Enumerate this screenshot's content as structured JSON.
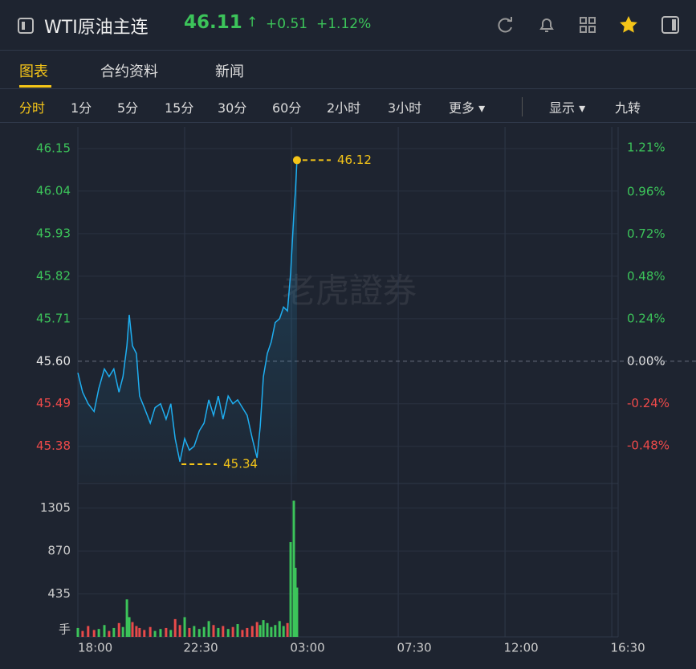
{
  "header": {
    "symbol": "WTI原油主连",
    "price": "46.11",
    "change": "+0.51",
    "change_pct": "+1.12%"
  },
  "tabs": [
    "图表",
    "合约资料",
    "新闻"
  ],
  "periods": [
    "分时",
    "1分",
    "5分",
    "15分",
    "30分",
    "60分",
    "2小时",
    "3小时"
  ],
  "more": "更多",
  "display": "显示",
  "nine": "九转",
  "watermark": "老虎證券",
  "chart_data": [
    {
      "type": "line",
      "baseline": 45.6,
      "up_color": "#3cc45a",
      "down_color": "#f04a4a",
      "flat_color": "#e6e6e6",
      "marker_color": "#f5c518",
      "x": [
        0,
        12,
        26,
        41,
        53,
        67,
        79,
        91,
        104,
        114,
        124,
        130,
        138,
        148,
        156,
        168,
        183,
        195,
        209,
        223,
        235,
        246,
        258,
        270,
        282,
        294,
        307,
        319,
        331,
        343,
        355,
        367,
        380,
        392,
        404,
        416,
        428,
        441,
        453,
        461,
        469,
        479,
        489,
        499,
        510,
        520,
        530,
        538,
        546,
        550,
        554
      ],
      "series": [
        {
          "color": "#1eaef0",
          "values": [
            45.57,
            45.52,
            45.49,
            45.47,
            45.53,
            45.58,
            45.56,
            45.58,
            45.52,
            45.56,
            45.64,
            45.72,
            45.64,
            45.62,
            45.51,
            45.48,
            45.44,
            45.48,
            45.49,
            45.45,
            45.49,
            45.4,
            45.34,
            45.4,
            45.37,
            45.38,
            45.42,
            45.44,
            45.5,
            45.46,
            45.51,
            45.45,
            45.51,
            45.49,
            45.5,
            45.48,
            45.46,
            45.4,
            45.35,
            45.43,
            45.56,
            45.62,
            45.65,
            45.7,
            45.71,
            45.74,
            45.73,
            45.83,
            45.98,
            46.04,
            46.12
          ]
        }
      ],
      "xlim": [
        0,
        1366
      ],
      "ylim": [
        45.288,
        46.206
      ],
      "yticks": [
        {
          "value": 46.15,
          "label": "46.15"
        },
        46.04,
        45.93,
        45.82,
        45.71,
        {
          "value": 45.6,
          "label": "45.60"
        },
        45.49,
        45.38
      ],
      "y2lim": [
        -0.684,
        1.329
      ],
      "y2ticks": [
        {
          "value": 1.21,
          "label": "1.21%"
        },
        {
          "value": 0.96,
          "label": "0.96%"
        },
        {
          "value": 0.72,
          "label": "0.72%"
        },
        {
          "value": 0.48,
          "label": "0.48%"
        },
        {
          "value": 0.24,
          "label": "0.24%"
        },
        {
          "value": 0,
          "label": "0.00%"
        },
        {
          "value": -0.24,
          "label": "-0.24%"
        },
        {
          "value": -0.48,
          "label": "-0.48%"
        }
      ],
      "grid": true
    },
    {
      "type": "bar",
      "unit_label": "手",
      "up_color": "#3cc45a",
      "down_color": "#e84a4a",
      "x": [
        0,
        12,
        26,
        41,
        53,
        67,
        79,
        91,
        104,
        114,
        124,
        130,
        138,
        148,
        156,
        168,
        183,
        195,
        209,
        223,
        235,
        246,
        258,
        270,
        282,
        294,
        307,
        319,
        331,
        343,
        355,
        367,
        380,
        392,
        404,
        416,
        428,
        441,
        453,
        461,
        469,
        479,
        489,
        499,
        510,
        520,
        530,
        538,
        546,
        550,
        554
      ],
      "values": [
        90,
        60,
        110,
        70,
        80,
        120,
        60,
        90,
        140,
        100,
        380,
        200,
        150,
        110,
        90,
        70,
        100,
        60,
        80,
        90,
        70,
        180,
        120,
        200,
        90,
        110,
        80,
        100,
        160,
        120,
        90,
        110,
        80,
        100,
        130,
        70,
        90,
        110,
        150,
        120,
        170,
        140,
        100,
        120,
        160,
        110,
        140,
        960,
        1380,
        700,
        500
      ],
      "xlim": [
        0,
        1366
      ],
      "ylim": [
        0,
        1530
      ],
      "yticks": [
        435,
        870,
        1305
      ],
      "xticks": [
        {
          "value": 0,
          "label": "18:00"
        },
        {
          "value": 270,
          "label": "22:30"
        },
        {
          "value": 540,
          "label": "03:00"
        },
        {
          "value": 810,
          "label": "07:30"
        },
        {
          "value": 1080,
          "label": "12:00"
        },
        {
          "value": 1350,
          "label": "16:30"
        }
      ],
      "grid": true
    }
  ]
}
